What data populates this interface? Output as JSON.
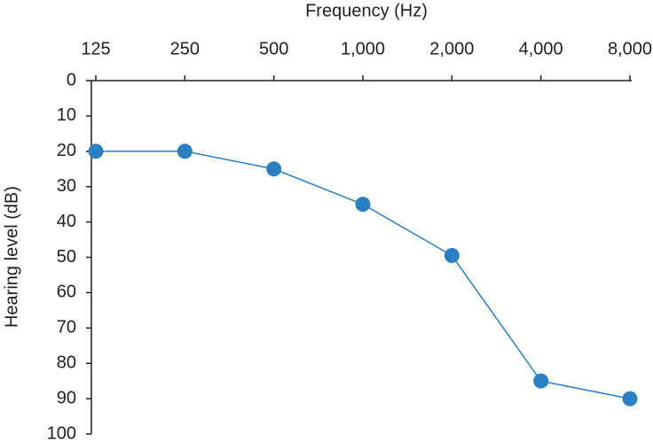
{
  "chart_data": {
    "type": "line",
    "title": "Frequency (Hz)",
    "y_label": "Hearing level (dB)",
    "x": [
      125,
      250,
      500,
      1000,
      2000,
      4000,
      8000
    ],
    "series": [
      {
        "name": "Hearing level",
        "color": "#2b7fc3",
        "values": [
          20,
          20,
          25,
          35,
          49.5,
          85,
          90
        ]
      }
    ],
    "x_scale": "log",
    "x_axis_position": "top",
    "xlim": [
      125,
      8000
    ],
    "xticks": [
      125,
      250,
      500,
      {
        "value": 1000,
        "label": "1,000"
      },
      {
        "value": 2000,
        "label": "2,000"
      },
      {
        "value": 4000,
        "label": "4,000"
      },
      {
        "value": 8000,
        "label": "8,000"
      }
    ],
    "ylim": [
      0,
      100
    ],
    "y_reversed": true,
    "yticks": [
      0,
      10,
      20,
      30,
      40,
      50,
      60,
      70,
      80,
      90,
      100
    ]
  }
}
